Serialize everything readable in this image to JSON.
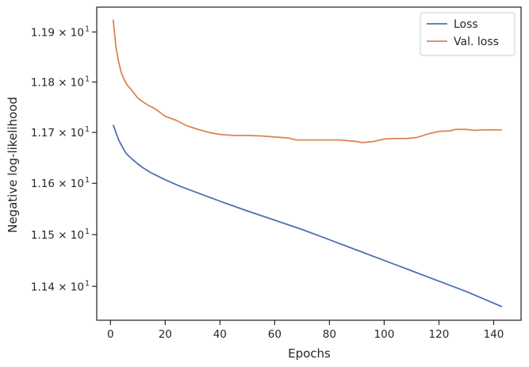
{
  "chart_data": {
    "type": "line",
    "xlabel": "Epochs",
    "ylabel": "Negative log-likelihood",
    "xlim": [
      -5,
      150
    ],
    "ylim": [
      11.335,
      11.95
    ],
    "y_scale": "log",
    "grid": false,
    "legend": "top-right",
    "x_ticks": [
      {
        "value": 0,
        "label": "0"
      },
      {
        "value": 20,
        "label": "20"
      },
      {
        "value": 40,
        "label": "40"
      },
      {
        "value": 60,
        "label": "60"
      },
      {
        "value": 80,
        "label": "80"
      },
      {
        "value": 100,
        "label": "100"
      },
      {
        "value": 120,
        "label": "120"
      },
      {
        "value": 140,
        "label": "140"
      }
    ],
    "y_ticks": [
      {
        "value": 11.4,
        "mantissa": "1.14",
        "exponent": "1"
      },
      {
        "value": 11.5,
        "mantissa": "1.15",
        "exponent": "1"
      },
      {
        "value": 11.6,
        "mantissa": "1.16",
        "exponent": "1"
      },
      {
        "value": 11.7,
        "mantissa": "1.17",
        "exponent": "1"
      },
      {
        "value": 11.8,
        "mantissa": "1.18",
        "exponent": "1"
      },
      {
        "value": 11.9,
        "mantissa": "1.19",
        "exponent": "1"
      }
    ],
    "series": [
      {
        "name": "Loss",
        "color": "#4c72b0",
        "points": [
          [
            1,
            11.715
          ],
          [
            2,
            11.7
          ],
          [
            3,
            11.685
          ],
          [
            4,
            11.675
          ],
          [
            5,
            11.665
          ],
          [
            6,
            11.657
          ],
          [
            8,
            11.647
          ],
          [
            10,
            11.638
          ],
          [
            12,
            11.63
          ],
          [
            15,
            11.62
          ],
          [
            20,
            11.607
          ],
          [
            25,
            11.595
          ],
          [
            30,
            11.585
          ],
          [
            40,
            11.565
          ],
          [
            50,
            11.546
          ],
          [
            60,
            11.528
          ],
          [
            70,
            11.51
          ],
          [
            80,
            11.49
          ],
          [
            90,
            11.47
          ],
          [
            100,
            11.45
          ],
          [
            110,
            11.43
          ],
          [
            120,
            11.41
          ],
          [
            130,
            11.39
          ],
          [
            143,
            11.361
          ]
        ]
      },
      {
        "name": "Val. loss",
        "color": "#dd8452",
        "points": [
          [
            1,
            11.925
          ],
          [
            2,
            11.87
          ],
          [
            3,
            11.84
          ],
          [
            4,
            11.818
          ],
          [
            5,
            11.805
          ],
          [
            6,
            11.795
          ],
          [
            8,
            11.782
          ],
          [
            10,
            11.768
          ],
          [
            12,
            11.76
          ],
          [
            14,
            11.753
          ],
          [
            16,
            11.748
          ],
          [
            18,
            11.74
          ],
          [
            20,
            11.732
          ],
          [
            24,
            11.724
          ],
          [
            28,
            11.713
          ],
          [
            32,
            11.706
          ],
          [
            36,
            11.7
          ],
          [
            40,
            11.696
          ],
          [
            45,
            11.694
          ],
          [
            50,
            11.694
          ],
          [
            55,
            11.693
          ],
          [
            60,
            11.691
          ],
          [
            65,
            11.689
          ],
          [
            68,
            11.685
          ],
          [
            72,
            11.685
          ],
          [
            78,
            11.685
          ],
          [
            84,
            11.685
          ],
          [
            90,
            11.682
          ],
          [
            92,
            11.68
          ],
          [
            96,
            11.682
          ],
          [
            100,
            11.687
          ],
          [
            104,
            11.688
          ],
          [
            108,
            11.688
          ],
          [
            112,
            11.69
          ],
          [
            116,
            11.697
          ],
          [
            120,
            11.702
          ],
          [
            124,
            11.703
          ],
          [
            126,
            11.706
          ],
          [
            130,
            11.706
          ],
          [
            133,
            11.704
          ],
          [
            136,
            11.705
          ],
          [
            140,
            11.705
          ],
          [
            143,
            11.705
          ]
        ]
      }
    ]
  }
}
